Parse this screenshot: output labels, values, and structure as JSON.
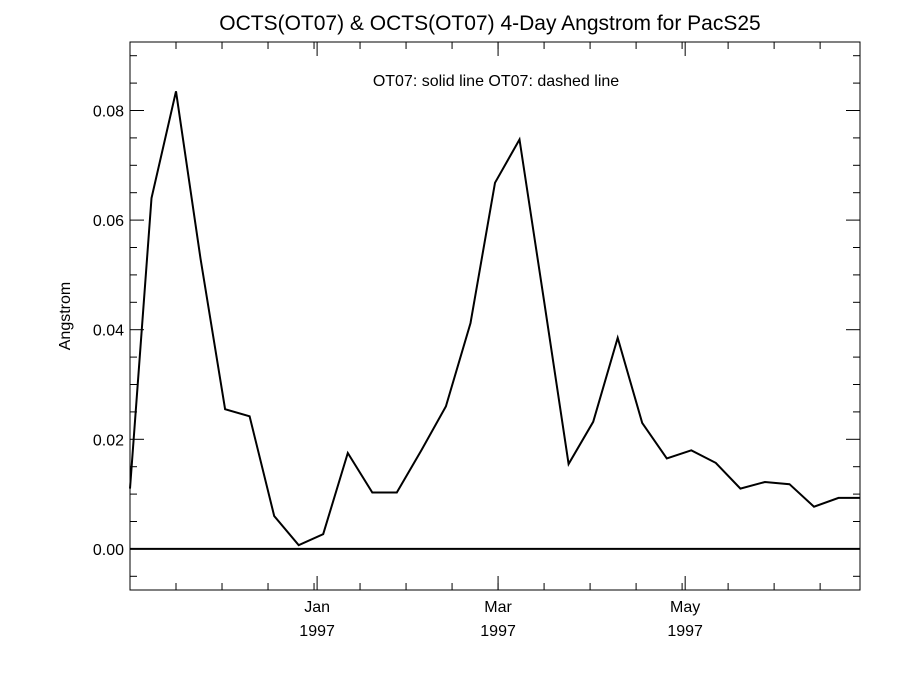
{
  "chart_data": {
    "type": "line",
    "title": "OCTS(OT07) & OCTS(OT07) 4-Day Angstrom for PacS25",
    "xlabel": "",
    "ylabel": "Angstrom",
    "legend_text": "OT07: solid line   OT07: dashed line",
    "ylim": [
      -0.0075,
      0.0925
    ],
    "yticks": [
      0.0,
      0.02,
      0.04,
      0.06,
      0.08
    ],
    "ytick_labels": [
      "0.00",
      "0.02",
      "0.04",
      "0.06",
      "0.08"
    ],
    "xlim": [
      "1996-11-01",
      "1997-06-27"
    ],
    "xticks": [
      {
        "date": "1997-01-01",
        "month": "Jan",
        "year": "1997"
      },
      {
        "date": "1997-03-01",
        "month": "Mar",
        "year": "1997"
      },
      {
        "date": "1997-05-01",
        "month": "May",
        "year": "1997"
      }
    ],
    "reference_line": 0.0,
    "series": [
      {
        "style": "solid",
        "x": [
          "1996-11-01",
          "1996-11-08",
          "1996-11-16",
          "1996-11-24",
          "1996-12-02",
          "1996-12-10",
          "1996-12-18",
          "1996-12-26",
          "1997-01-03",
          "1997-01-11",
          "1997-01-19",
          "1997-01-27",
          "1997-02-04",
          "1997-02-12",
          "1997-02-20",
          "1997-02-28",
          "1997-03-08",
          "1997-03-16",
          "1997-03-24",
          "1997-04-01",
          "1997-04-09",
          "1997-04-17",
          "1997-04-25",
          "1997-05-03",
          "1997-05-11",
          "1997-05-19",
          "1997-05-27",
          "1997-06-04",
          "1997-06-12",
          "1997-06-20",
          "1997-06-27"
        ],
        "y": [
          0.011,
          0.064,
          0.0835,
          0.053,
          0.0255,
          0.0242,
          0.006,
          0.0007,
          0.0027,
          0.0175,
          0.0103,
          0.0103,
          0.018,
          0.026,
          0.0412,
          0.0668,
          0.0747,
          0.0452,
          0.0155,
          0.0232,
          0.0385,
          0.023,
          0.0165,
          0.018,
          0.0157,
          0.011,
          0.0122,
          0.0118,
          0.0077,
          0.0093,
          0.0093
        ]
      }
    ],
    "grid": false,
    "legend_position": "top-center"
  }
}
